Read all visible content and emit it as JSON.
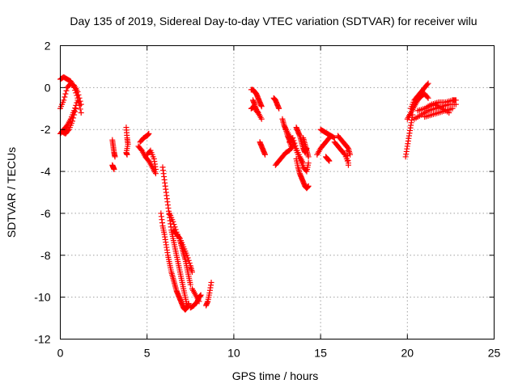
{
  "chart_data": {
    "type": "scatter",
    "title": "Day 135 of 2019, Sidereal Day-to-day VTEC variation (SDTVAR) for receiver wilu",
    "xlabel": "GPS time / hours",
    "ylabel": "SDTVAR / TECUs",
    "xlim": [
      0,
      25
    ],
    "ylim": [
      -12,
      2
    ],
    "xticks": [
      0,
      5,
      10,
      15,
      20,
      25
    ],
    "yticks": [
      2,
      0,
      -2,
      -4,
      -6,
      -8,
      -10,
      -12
    ],
    "grid": true,
    "marker": "+",
    "color": "#ff0000",
    "segments": [
      {
        "x": [
          0.0,
          0.2,
          0.4,
          0.6,
          0.8,
          1.0,
          1.2
        ],
        "y": [
          0.4,
          0.5,
          0.4,
          0.3,
          0.0,
          -0.5,
          -1.2
        ]
      },
      {
        "x": [
          0.0,
          0.2,
          0.4,
          0.6,
          0.8,
          1.0,
          1.2
        ],
        "y": [
          -1.0,
          -0.6,
          0.0,
          0.2,
          0.1,
          -0.2,
          -0.8
        ]
      },
      {
        "x": [
          0.0,
          0.2,
          0.4,
          0.6,
          0.8,
          1.0
        ],
        "y": [
          -2.2,
          -2.0,
          -1.8,
          -1.5,
          -1.1,
          -0.6
        ]
      },
      {
        "x": [
          0.1,
          0.3,
          0.5,
          0.7,
          0.9
        ],
        "y": [
          -2.1,
          -2.2,
          -2.0,
          -1.6,
          -1.0
        ]
      },
      {
        "x": [
          3.0,
          3.05,
          3.1,
          3.15
        ],
        "y": [
          -2.5,
          -2.8,
          -3.1,
          -3.3
        ]
      },
      {
        "x": [
          3.0,
          3.05,
          3.1
        ],
        "y": [
          -3.7,
          -3.8,
          -3.9
        ]
      },
      {
        "x": [
          3.8,
          3.85,
          3.9,
          3.8,
          3.85
        ],
        "y": [
          -1.9,
          -2.4,
          -2.7,
          -3.1,
          -3.2
        ]
      },
      {
        "x": [
          4.6,
          4.8,
          5.0,
          5.1
        ],
        "y": [
          -2.6,
          -2.4,
          -2.3,
          -2.2
        ]
      },
      {
        "x": [
          4.5,
          4.7,
          4.9,
          5.1,
          5.3,
          5.5
        ],
        "y": [
          -2.8,
          -3.0,
          -3.3,
          -3.5,
          -3.8,
          -4.1
        ]
      },
      {
        "x": [
          5.0,
          5.2,
          5.4,
          5.5
        ],
        "y": [
          -3.2,
          -3.0,
          -3.4,
          -3.9
        ]
      },
      {
        "x": [
          5.9,
          6.0,
          6.1,
          6.2,
          6.3,
          6.4,
          6.5,
          6.6,
          6.7,
          6.8,
          6.9,
          7.0,
          7.1,
          7.2,
          7.3
        ],
        "y": [
          -3.8,
          -4.4,
          -5.0,
          -5.6,
          -6.2,
          -6.8,
          -7.2,
          -7.6,
          -8.0,
          -8.4,
          -8.8,
          -9.2,
          -9.6,
          -10.0,
          -10.4
        ]
      },
      {
        "x": [
          5.8,
          5.9,
          6.0,
          6.1,
          6.2,
          6.3,
          6.4,
          6.5,
          6.6,
          6.7,
          6.8,
          6.9,
          7.0,
          7.1,
          7.2,
          7.3,
          7.4
        ],
        "y": [
          -6.0,
          -6.6,
          -7.0,
          -7.5,
          -8.0,
          -8.4,
          -8.8,
          -9.1,
          -9.4,
          -9.7,
          -9.9,
          -10.1,
          -10.3,
          -10.5,
          -10.6,
          -10.5,
          -10.3
        ]
      },
      {
        "x": [
          6.3,
          6.5,
          6.7,
          6.9,
          7.0,
          7.1,
          7.2,
          7.3,
          7.4,
          7.5
        ],
        "y": [
          -6.0,
          -6.4,
          -6.9,
          -7.3,
          -7.6,
          -7.9,
          -8.2,
          -8.6,
          -9.0,
          -9.4
        ]
      },
      {
        "x": [
          6.5,
          6.7,
          6.9,
          7.1,
          7.3,
          7.5,
          7.6
        ],
        "y": [
          -6.8,
          -7.0,
          -7.2,
          -7.6,
          -8.0,
          -8.5,
          -8.8
        ]
      },
      {
        "x": [
          7.5,
          7.7,
          7.9,
          8.0,
          8.1
        ],
        "y": [
          -10.5,
          -10.4,
          -10.2,
          -10.0,
          -9.9
        ]
      },
      {
        "x": [
          7.6,
          7.8,
          8.0
        ],
        "y": [
          -9.6,
          -9.9,
          -10.2
        ]
      },
      {
        "x": [
          8.4,
          8.5,
          8.6,
          8.7
        ],
        "y": [
          -10.4,
          -10.2,
          -9.8,
          -9.3
        ]
      },
      {
        "x": [
          11.0,
          11.1,
          11.2,
          11.3,
          11.4,
          11.5,
          11.6
        ],
        "y": [
          -0.1,
          -0.1,
          -0.2,
          -0.3,
          -0.5,
          -0.7,
          -0.9
        ]
      },
      {
        "x": [
          11.0,
          11.2,
          11.4,
          11.6
        ],
        "y": [
          -1.0,
          -0.9,
          -1.2,
          -1.5
        ]
      },
      {
        "x": [
          11.1,
          11.2,
          11.3,
          11.4
        ],
        "y": [
          -0.6,
          -0.8,
          -1.1,
          -1.2
        ]
      },
      {
        "x": [
          11.5,
          11.6,
          11.7,
          11.8
        ],
        "y": [
          -2.6,
          -2.8,
          -3.0,
          -3.2
        ]
      },
      {
        "x": [
          12.3,
          12.4,
          12.5,
          12.6
        ],
        "y": [
          -0.5,
          -0.6,
          -0.8,
          -1.0
        ]
      },
      {
        "x": [
          12.8,
          12.9,
          13.0,
          13.1,
          13.2,
          13.3
        ],
        "y": [
          -1.5,
          -1.8,
          -2.0,
          -2.3,
          -2.5,
          -2.8
        ]
      },
      {
        "x": [
          12.4,
          12.6,
          12.8,
          13.0,
          13.2,
          13.4
        ],
        "y": [
          -3.7,
          -3.5,
          -3.3,
          -3.1,
          -3.0,
          -2.8
        ]
      },
      {
        "x": [
          13.2,
          13.4,
          13.6,
          13.8,
          14.0
        ],
        "y": [
          -2.6,
          -2.4,
          -2.9,
          -3.3,
          -3.6
        ]
      },
      {
        "x": [
          13.0,
          13.2,
          13.4,
          13.6,
          13.8,
          14.0,
          14.2,
          14.3
        ],
        "y": [
          -2.0,
          -2.3,
          -2.6,
          -3.0,
          -3.4,
          -3.8,
          -4.0,
          -3.6
        ]
      },
      {
        "x": [
          13.6,
          13.7,
          13.8,
          13.9,
          14.0,
          14.1,
          14.2,
          14.3
        ],
        "y": [
          -3.4,
          -3.8,
          -4.1,
          -4.3,
          -4.5,
          -4.7,
          -4.8,
          -4.7
        ]
      },
      {
        "x": [
          13.6,
          13.7,
          13.8,
          13.9,
          14.0,
          14.1,
          14.2
        ],
        "y": [
          -1.9,
          -2.1,
          -2.3,
          -2.6,
          -2.9,
          -3.1,
          -2.9
        ]
      },
      {
        "x": [
          14.0,
          14.1,
          14.2,
          14.3
        ],
        "y": [
          -2.4,
          -2.7,
          -3.0,
          -3.3
        ]
      },
      {
        "x": [
          14.8,
          15.0,
          15.2,
          15.4,
          15.6
        ],
        "y": [
          -3.2,
          -2.9,
          -2.7,
          -2.5,
          -2.3
        ]
      },
      {
        "x": [
          15.0,
          15.2,
          15.4,
          15.6,
          15.8
        ],
        "y": [
          -2.0,
          -2.1,
          -2.2,
          -2.3,
          -2.4
        ]
      },
      {
        "x": [
          15.3,
          15.4,
          15.5
        ],
        "y": [
          -3.3,
          -3.4,
          -3.5
        ]
      },
      {
        "x": [
          15.8,
          16.0,
          16.2,
          16.4,
          16.6
        ],
        "y": [
          -2.6,
          -2.8,
          -3.0,
          -3.2,
          -3.6
        ]
      },
      {
        "x": [
          16.0,
          16.2,
          16.4,
          16.6,
          16.7
        ],
        "y": [
          -2.3,
          -2.5,
          -2.7,
          -2.9,
          -3.2
        ]
      },
      {
        "x": [
          16.3,
          16.5,
          16.6
        ],
        "y": [
          -2.6,
          -2.8,
          -3.7
        ]
      },
      {
        "x": [
          19.9,
          20.0,
          20.1,
          20.2,
          20.3
        ],
        "y": [
          -3.3,
          -2.8,
          -2.3,
          -1.8,
          -1.3
        ]
      },
      {
        "x": [
          20.0,
          20.2,
          20.4,
          20.6,
          20.8,
          21.0,
          21.2
        ],
        "y": [
          -1.5,
          -1.2,
          -0.9,
          -0.6,
          -0.4,
          -0.3,
          -0.5
        ]
      },
      {
        "x": [
          20.2,
          20.4,
          20.6,
          20.8,
          21.0,
          21.2
        ],
        "y": [
          -1.0,
          -0.6,
          -0.4,
          -0.2,
          0.0,
          0.2
        ]
      },
      {
        "x": [
          20.4,
          20.8,
          21.2,
          21.6,
          22.0,
          22.4,
          22.8
        ],
        "y": [
          -1.5,
          -1.3,
          -1.1,
          -1.0,
          -0.9,
          -0.8,
          -0.8
        ]
      },
      {
        "x": [
          20.6,
          21.0,
          21.4,
          21.8,
          22.2,
          22.6,
          22.8
        ],
        "y": [
          -1.1,
          -1.0,
          -0.8,
          -0.7,
          -0.7,
          -0.6,
          -0.6
        ]
      },
      {
        "x": [
          21.0,
          21.4,
          21.8,
          22.2,
          22.6
        ],
        "y": [
          -1.4,
          -1.3,
          -1.2,
          -1.1,
          -1.0
        ]
      },
      {
        "x": [
          21.2,
          21.6,
          22.0,
          22.4
        ],
        "y": [
          -0.9,
          -0.8,
          -1.0,
          -1.2
        ]
      }
    ]
  }
}
